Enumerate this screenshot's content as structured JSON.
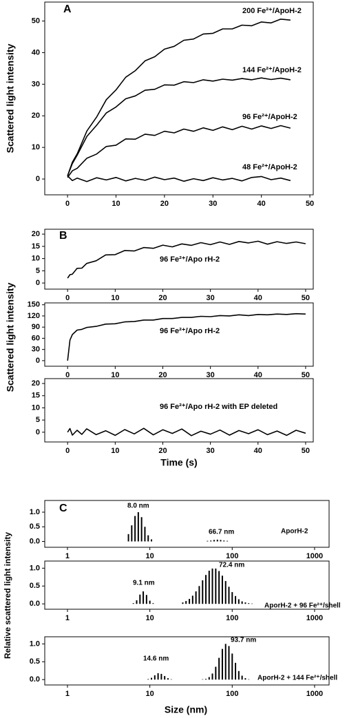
{
  "chart_data": [
    {
      "type": "line",
      "panel": "A",
      "ylabel": "Scattered light intensity",
      "x": [
        0,
        1,
        2,
        4,
        6,
        8,
        10,
        12,
        14,
        16,
        18,
        20,
        22,
        24,
        26,
        28,
        30,
        32,
        34,
        36,
        38,
        40,
        42,
        44,
        46
      ],
      "series": [
        {
          "name": "200 Fe²⁺/ApoH-2",
          "color": "#000000",
          "values": [
            1,
            5.3,
            8.0,
            15.2,
            19.6,
            25.1,
            28.2,
            32.2,
            34.3,
            37.4,
            38.7,
            41.1,
            42.0,
            43.9,
            44.3,
            45.9,
            46.1,
            47.5,
            47.5,
            48.7,
            48.5,
            49.7,
            49.4,
            50.6,
            50.3
          ]
        },
        {
          "name": "144 Fe²⁺/ApoH-2",
          "color": "#000000",
          "values": [
            1,
            4.9,
            7.6,
            13.5,
            17.0,
            20.9,
            22.8,
            25.4,
            26.3,
            28.1,
            28.4,
            29.8,
            29.7,
            30.8,
            30.5,
            31.4,
            31.0,
            31.6,
            31.3,
            31.8,
            31.4,
            32.0,
            31.5,
            31.9,
            31.4
          ]
        },
        {
          "name": "96 Fe²⁺/ApoH-2",
          "color": "#000000",
          "values": [
            0.5,
            2.6,
            3.4,
            6.6,
            7.9,
            10.3,
            10.7,
            12.7,
            12.6,
            14.2,
            13.8,
            15.1,
            14.6,
            15.8,
            15.1,
            16.2,
            15.4,
            16.5,
            15.6,
            16.7,
            15.8,
            16.8,
            16.0,
            16.9,
            16.1
          ]
        },
        {
          "name": "48 Fe²⁺/ApoH-2",
          "color": "#000000",
          "values": [
            1,
            -0.5,
            0.3,
            -0.8,
            0.4,
            -0.3,
            0.5,
            -0.6,
            0.2,
            -0.4,
            0.6,
            -0.2,
            0.3,
            -0.7,
            0.1,
            -0.5,
            0.4,
            -0.3,
            0.2,
            -0.6,
            0.5,
            0.8,
            -0.2,
            0.3,
            -0.5
          ]
        }
      ],
      "xlim": [
        -4.7,
        50.7
      ],
      "xticks": [
        0,
        10,
        20,
        30,
        40,
        50
      ],
      "ylim": [
        -5,
        56
      ],
      "yticks": [
        0,
        10,
        20,
        30,
        40,
        50
      ]
    },
    {
      "type": "line",
      "panel": "B",
      "x": [
        0,
        0.5,
        1,
        2,
        3,
        4,
        6,
        8,
        10,
        12,
        14,
        16,
        18,
        20,
        22,
        24,
        26,
        28,
        30,
        32,
        34,
        36,
        38,
        40,
        42,
        44,
        46,
        48,
        50
      ],
      "series": [
        {
          "name": "96 Fe²⁺/Apo rH-2",
          "color": "#000000",
          "values": [
            2,
            3.4,
            3.6,
            6.0,
            6.1,
            8.0,
            9.1,
            11.5,
            11.6,
            13.3,
            13.1,
            14.5,
            14.2,
            15.5,
            14.8,
            16.0,
            15.4,
            16.5,
            15.7,
            16.8,
            15.8,
            17.0,
            16.4,
            17.1,
            15.9,
            16.9,
            16.2,
            16.8,
            16.1
          ]
        }
      ],
      "xlim": [
        -4.8,
        51.6
      ],
      "xticks": [
        0,
        10,
        20,
        30,
        40,
        50
      ],
      "ylim": [
        -2.5,
        22
      ],
      "yticks": [
        0,
        5,
        10,
        15,
        20
      ]
    },
    {
      "type": "line",
      "ylabel": "Scattered light intensity",
      "x": [
        0,
        0.5,
        1,
        2,
        3,
        4,
        6,
        8,
        10,
        12,
        14,
        16,
        18,
        20,
        22,
        24,
        26,
        28,
        30,
        32,
        34,
        36,
        38,
        40,
        42,
        44,
        46,
        48,
        50
      ],
      "series": [
        {
          "name": "96 Fe²⁺/Apo rH-2",
          "color": "#000000",
          "values": [
            0,
            55,
            70,
            82,
            84,
            89,
            92,
            98,
            99,
            104,
            105,
            109,
            109,
            113,
            113,
            116,
            116,
            119,
            118,
            121,
            120,
            123,
            121,
            124,
            123,
            125,
            124,
            126,
            125
          ]
        }
      ],
      "xlim": [
        -4.8,
        51.6
      ],
      "xticks": [
        0,
        10,
        20,
        30,
        40,
        50
      ],
      "ylim": [
        -15,
        155
      ],
      "yticks": [
        0,
        30,
        60,
        90,
        120,
        150
      ]
    },
    {
      "type": "line",
      "xlabel": "Time (s)",
      "x": [
        0,
        0.5,
        1,
        2,
        3,
        4,
        6,
        8,
        10,
        12,
        14,
        16,
        18,
        20,
        22,
        24,
        26,
        28,
        30,
        32,
        34,
        36,
        38,
        40,
        42,
        44,
        46,
        48,
        50
      ],
      "series": [
        {
          "name": "96 Fe²⁺/Apo rH-2 with EP deleted",
          "color": "#000000",
          "values": [
            0,
            1.5,
            -1.2,
            0.8,
            -0.9,
            1.4,
            -1.0,
            0.6,
            -1.3,
            1.1,
            -0.7,
            1.6,
            -1.1,
            1.0,
            -0.5,
            1.3,
            -1.4,
            0.4,
            -0.8,
            0.9,
            -1.2,
            0.7,
            -0.6,
            1.0,
            -1.0,
            0.5,
            -1.3,
            0.8,
            -0.4
          ]
        }
      ],
      "xlim": [
        -4.8,
        51.6
      ],
      "xticks": [
        0,
        10,
        20,
        30,
        40,
        50
      ],
      "ylim": [
        -4,
        22
      ],
      "yticks": [
        0,
        5,
        10,
        15,
        20
      ]
    },
    {
      "type": "bar",
      "panel": "C",
      "log_x": true,
      "annotations": [
        "8.0 nm",
        "66.7 nm",
        "AporH-2"
      ],
      "x": [
        5.5,
        6.03,
        6.61,
        7.24,
        7.94,
        8.71,
        9.55,
        10.47,
        50.1,
        55.0,
        60.3,
        66.1,
        72.4,
        79.4,
        87.1
      ],
      "values": [
        0.25,
        0.55,
        0.87,
        1.0,
        0.83,
        0.5,
        0.21,
        0.07,
        0.02,
        0.03,
        0.05,
        0.06,
        0.05,
        0.03,
        0.02
      ],
      "color": "#000000",
      "xlim": [
        0.53,
        1500
      ],
      "xticks": [
        1,
        10,
        100,
        1000
      ],
      "ylim": [
        -0.2,
        1.4
      ],
      "yticks": [
        {
          "value": 0,
          "label": "0.0"
        },
        {
          "value": 0.5,
          "label": "0.5"
        },
        {
          "value": 1,
          "label": "1.0"
        }
      ]
    },
    {
      "type": "bar",
      "log_x": true,
      "ylabel": "Relative scattered light intensity",
      "annotations": [
        "9.1 nm",
        "72.4 nm",
        "AporH-2 + 96 Fe²⁺/shell"
      ],
      "x": [
        6.31,
        6.92,
        7.59,
        8.32,
        9.12,
        10.0,
        10.96,
        25.1,
        27.5,
        30.2,
        33.1,
        36.3,
        39.8,
        43.7,
        47.9,
        52.5,
        57.5,
        63.1,
        69.2,
        75.9,
        83.2,
        91.2,
        100,
        109.6,
        120.2,
        131.8,
        144.5,
        158.5,
        173.8
      ],
      "values": [
        0.02,
        0.1,
        0.26,
        0.35,
        0.25,
        0.09,
        0.02,
        0.04,
        0.08,
        0.14,
        0.23,
        0.35,
        0.5,
        0.66,
        0.81,
        0.93,
        0.99,
        0.99,
        0.92,
        0.79,
        0.64,
        0.48,
        0.33,
        0.22,
        0.13,
        0.07,
        0.04,
        0.02,
        0.01
      ],
      "color": "#000000",
      "xlim": [
        0.53,
        1500
      ],
      "xticks": [
        1,
        10,
        100,
        1000
      ],
      "ylim": [
        -0.15,
        1.2
      ],
      "yticks": [
        {
          "value": 0,
          "label": "0.0"
        },
        {
          "value": 0.5,
          "label": "0.5"
        },
        {
          "value": 1,
          "label": "1.0"
        }
      ]
    },
    {
      "type": "bar",
      "log_x": true,
      "xlabel": "Size (nm)",
      "annotations": [
        "93.7 nm",
        "14.6 nm",
        "AporH-2 + 144 Fe²⁺/shell"
      ],
      "x": [
        9.55,
        10.47,
        11.48,
        12.59,
        13.8,
        15.14,
        16.6,
        18.2,
        43.7,
        47.9,
        52.5,
        57.5,
        63.1,
        69.2,
        75.9,
        83.2,
        91.2,
        100,
        109.6,
        120.2,
        131.8,
        144.5,
        158.5
      ],
      "values": [
        0.015,
        0.05,
        0.12,
        0.18,
        0.16,
        0.1,
        0.04,
        0.01,
        0.01,
        0.02,
        0.07,
        0.17,
        0.36,
        0.61,
        0.86,
        1.0,
        0.94,
        0.73,
        0.47,
        0.24,
        0.11,
        0.04,
        0.01
      ],
      "color": "#000000",
      "xlim": [
        0.53,
        1500
      ],
      "xticks": [
        1,
        10,
        100,
        1000
      ],
      "ylim": [
        -0.15,
        1.2
      ],
      "yticks": [
        {
          "value": 0,
          "label": "0.0"
        },
        {
          "value": 0.5,
          "label": "0.5"
        },
        {
          "value": 1,
          "label": "1.0"
        }
      ]
    }
  ]
}
